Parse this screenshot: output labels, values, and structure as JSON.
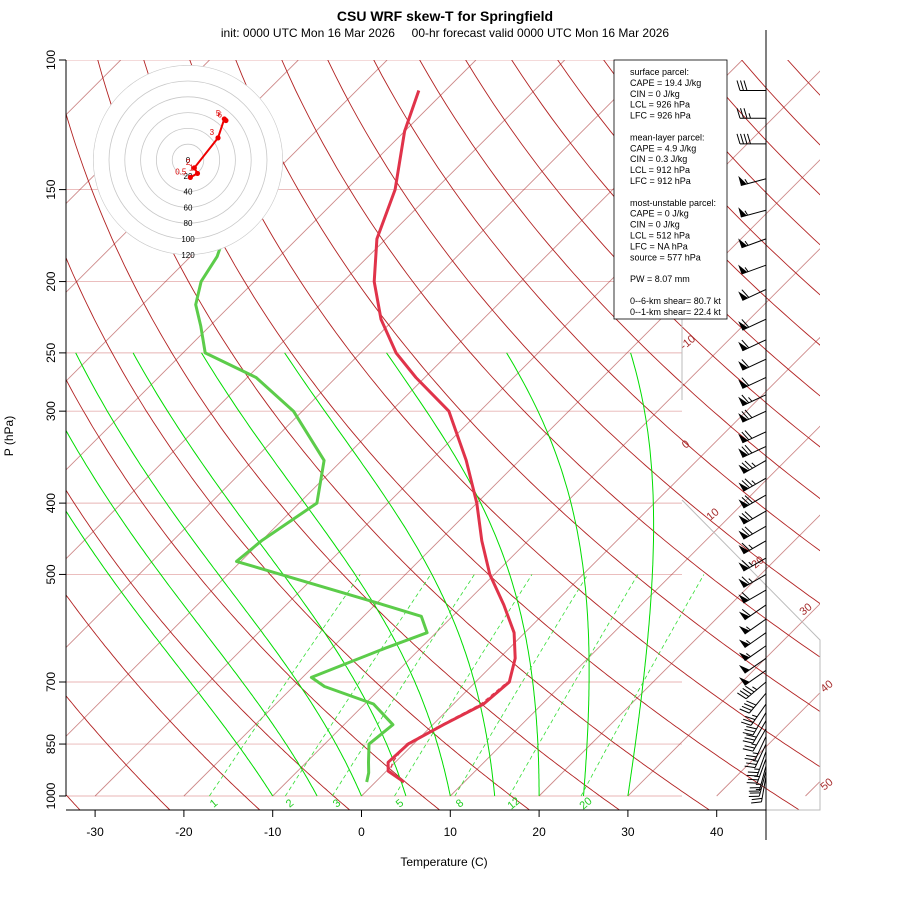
{
  "title": "CSU WRF skew-T for Springfield",
  "subtitle": "init: 0000 UTC Mon 16 Mar 2026     00-hr forecast valid 0000 UTC Mon 16 Mar 2026",
  "colors": {
    "temperature": "#e0334a",
    "dewpoint": "#5ccc4a",
    "isotherm": "#a52a2a",
    "isobar": "#e8b4b4",
    "dry_adiabat": "#b22222",
    "moist_adiabat": "#00dd00",
    "mixing_ratio": "#33dd33",
    "hodograph": "#ee0000"
  },
  "chart_data": {
    "type": "skew-t",
    "xlabel": "Temperature (C)",
    "ylabel": "P (hPa)",
    "x_ticks": [
      -30,
      -20,
      -10,
      0,
      10,
      20,
      30,
      40
    ],
    "p_ticks": [
      100,
      150,
      200,
      250,
      300,
      400,
      500,
      700,
      850,
      1000
    ],
    "xlim": [
      -33,
      47
    ],
    "plim": [
      1000,
      100
    ],
    "isotherm_labels": [
      -10,
      0,
      10,
      20,
      30,
      40,
      50
    ],
    "isotherm_values": [
      -110,
      -100,
      -90,
      -80,
      -70,
      -60,
      -50,
      -40,
      -30,
      -20,
      -10,
      0,
      10,
      20,
      30,
      40,
      50
    ],
    "dry_adiabats_theta_K": [
      230,
      240,
      250,
      260,
      270,
      280,
      290,
      300,
      310,
      320,
      330,
      340,
      350,
      360,
      370,
      380,
      390,
      400,
      410,
      420,
      430,
      440,
      450,
      460,
      470,
      480,
      500,
      520,
      540
    ],
    "moist_adiabats_start_C": [
      -10,
      -5,
      0,
      5,
      10,
      15,
      20,
      25,
      30
    ],
    "mixing_ratio_labels": [
      "1",
      "2",
      "3",
      "5",
      "8",
      "12",
      "20"
    ],
    "mixing_ratio_values": [
      1,
      2,
      3,
      5,
      8,
      12,
      20
    ],
    "temperature_profile": [
      {
        "p": 957,
        "t": 3.2
      },
      {
        "p": 925,
        "t": 0.2
      },
      {
        "p": 900,
        "t": -0.8
      },
      {
        "p": 850,
        "t": -0.6
      },
      {
        "p": 800,
        "t": 1.2
      },
      {
        "p": 750,
        "t": 3.4
      },
      {
        "p": 700,
        "t": 3.8
      },
      {
        "p": 650,
        "t": 1.8
      },
      {
        "p": 600,
        "t": -1.2
      },
      {
        "p": 550,
        "t": -5.5
      },
      {
        "p": 500,
        "t": -10.5
      },
      {
        "p": 450,
        "t": -15.2
      },
      {
        "p": 400,
        "t": -20.0
      },
      {
        "p": 350,
        "t": -26.0
      },
      {
        "p": 300,
        "t": -33.5
      },
      {
        "p": 270,
        "t": -41.0
      },
      {
        "p": 250,
        "t": -46.0
      },
      {
        "p": 225,
        "t": -51.5
      },
      {
        "p": 200,
        "t": -56.5
      },
      {
        "p": 175,
        "t": -61.0
      },
      {
        "p": 150,
        "t": -64.5
      },
      {
        "p": 125,
        "t": -70.0
      },
      {
        "p": 110,
        "t": -73.0
      }
    ],
    "parcel_profile": [
      {
        "p": 957,
        "t": 3.2
      },
      {
        "p": 926,
        "t": 0.5
      },
      {
        "p": 900,
        "t": -0.3
      },
      {
        "p": 850,
        "t": -0.8
      },
      {
        "p": 800,
        "t": 1.0
      },
      {
        "p": 750,
        "t": 3.1
      },
      {
        "p": 700,
        "t": 3.6
      }
    ],
    "dewpoint_profile": [
      {
        "p": 957,
        "t": -1.0
      },
      {
        "p": 930,
        "t": -1.8
      },
      {
        "p": 900,
        "t": -3.0
      },
      {
        "p": 850,
        "t": -5.0
      },
      {
        "p": 800,
        "t": -4.5
      },
      {
        "p": 750,
        "t": -9.0
      },
      {
        "p": 710,
        "t": -16.5
      },
      {
        "p": 690,
        "t": -19.0
      },
      {
        "p": 630,
        "t": -14.0
      },
      {
        "p": 600,
        "t": -11.0
      },
      {
        "p": 570,
        "t": -13.5
      },
      {
        "p": 550,
        "t": -19.0
      },
      {
        "p": 480,
        "t": -40.5
      },
      {
        "p": 450,
        "t": -40.0
      },
      {
        "p": 400,
        "t": -38.0
      },
      {
        "p": 350,
        "t": -42.0
      },
      {
        "p": 300,
        "t": -51.0
      },
      {
        "p": 270,
        "t": -59.0
      },
      {
        "p": 250,
        "t": -67.5
      },
      {
        "p": 230,
        "t": -71.0
      },
      {
        "p": 215,
        "t": -74.0
      },
      {
        "p": 200,
        "t": -76.0
      },
      {
        "p": 185,
        "t": -77.0
      },
      {
        "p": 170,
        "t": -79.0
      }
    ],
    "hodograph": {
      "ring_labels": [
        "0",
        "20",
        "40",
        "60",
        "80",
        "100",
        "120"
      ],
      "ring_values": [
        0,
        20,
        40,
        60,
        80,
        100,
        120
      ],
      "points": [
        {
          "label": "0.5",
          "u": 3,
          "v": -22
        },
        {
          "label": "1",
          "u": 12,
          "v": -17
        },
        {
          "label": "2",
          "u": 8,
          "v": -10
        },
        {
          "label": "3",
          "u": 38,
          "v": 28
        },
        {
          "label": "5",
          "u": 46,
          "v": 52
        },
        {
          "label": "6",
          "u": 48,
          "v": 50
        }
      ]
    },
    "wind_barbs": [
      {
        "p": 110,
        "dir": 270,
        "speed": 30
      },
      {
        "p": 120,
        "dir": 270,
        "speed": 35
      },
      {
        "p": 130,
        "dir": 270,
        "speed": 40
      },
      {
        "p": 145,
        "dir": 255,
        "speed": 55
      },
      {
        "p": 160,
        "dir": 255,
        "speed": 55
      },
      {
        "p": 175,
        "dir": 250,
        "speed": 55
      },
      {
        "p": 190,
        "dir": 250,
        "speed": 55
      },
      {
        "p": 205,
        "dir": 245,
        "speed": 60
      },
      {
        "p": 225,
        "dir": 245,
        "speed": 60
      },
      {
        "p": 240,
        "dir": 245,
        "speed": 60
      },
      {
        "p": 255,
        "dir": 245,
        "speed": 60
      },
      {
        "p": 270,
        "dir": 245,
        "speed": 60
      },
      {
        "p": 285,
        "dir": 245,
        "speed": 65
      },
      {
        "p": 300,
        "dir": 245,
        "speed": 70
      },
      {
        "p": 320,
        "dir": 245,
        "speed": 70
      },
      {
        "p": 335,
        "dir": 245,
        "speed": 70
      },
      {
        "p": 350,
        "dir": 240,
        "speed": 75
      },
      {
        "p": 370,
        "dir": 240,
        "speed": 75
      },
      {
        "p": 390,
        "dir": 240,
        "speed": 70
      },
      {
        "p": 410,
        "dir": 240,
        "speed": 70
      },
      {
        "p": 430,
        "dir": 240,
        "speed": 70
      },
      {
        "p": 450,
        "dir": 240,
        "speed": 65
      },
      {
        "p": 475,
        "dir": 240,
        "speed": 65
      },
      {
        "p": 500,
        "dir": 240,
        "speed": 65
      },
      {
        "p": 525,
        "dir": 240,
        "speed": 60
      },
      {
        "p": 550,
        "dir": 235,
        "speed": 60
      },
      {
        "p": 575,
        "dir": 235,
        "speed": 55
      },
      {
        "p": 600,
        "dir": 235,
        "speed": 55
      },
      {
        "p": 625,
        "dir": 235,
        "speed": 55
      },
      {
        "p": 650,
        "dir": 235,
        "speed": 50
      },
      {
        "p": 675,
        "dir": 235,
        "speed": 50
      },
      {
        "p": 700,
        "dir": 230,
        "speed": 45
      },
      {
        "p": 725,
        "dir": 220,
        "speed": 40
      },
      {
        "p": 750,
        "dir": 215,
        "speed": 35
      },
      {
        "p": 770,
        "dir": 210,
        "speed": 30
      },
      {
        "p": 790,
        "dir": 210,
        "speed": 30
      },
      {
        "p": 810,
        "dir": 210,
        "speed": 25
      },
      {
        "p": 830,
        "dir": 205,
        "speed": 25
      },
      {
        "p": 850,
        "dir": 205,
        "speed": 25
      },
      {
        "p": 870,
        "dir": 200,
        "speed": 25
      },
      {
        "p": 890,
        "dir": 200,
        "speed": 25
      },
      {
        "p": 910,
        "dir": 195,
        "speed": 25
      },
      {
        "p": 925,
        "dir": 195,
        "speed": 25
      },
      {
        "p": 940,
        "dir": 190,
        "speed": 20
      }
    ]
  },
  "legend": {
    "lines": [
      "surface parcel:",
      "CAPE = 19.4 J/kg",
      "CIN = 0 J/kg",
      "LCL = 926 hPa",
      "LFC = 926 hPa",
      "",
      "mean-layer parcel:",
      "CAPE = 4.9 J/kg",
      "CIN = 0.3 J/kg",
      "LCL = 912 hPa",
      "LFC = 912 hPa",
      "",
      "most-unstable parcel:",
      "CAPE = 0 J/kg",
      "CIN = 0 J/kg",
      "LCL = 512 hPa",
      "LFC = NA hPa",
      "source = 577 hPa",
      "",
      "PW =  8.07 mm",
      "",
      "0--6-km shear= 80.7 kt",
      "0--1-km shear= 22.4 kt"
    ]
  }
}
